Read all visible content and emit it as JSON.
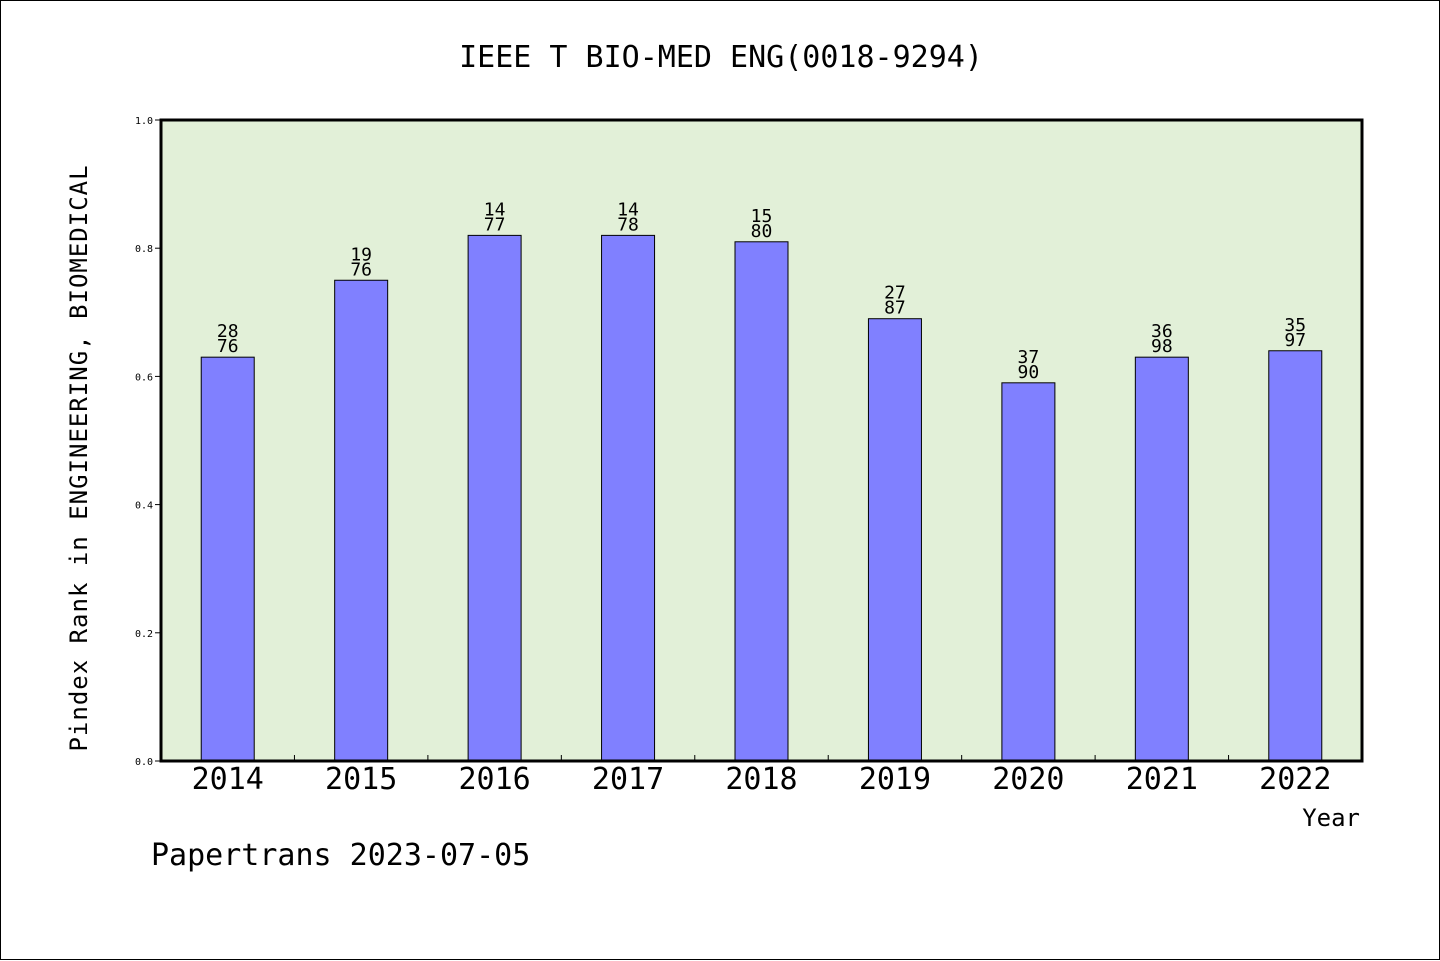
{
  "chart_data": {
    "type": "bar",
    "title": "IEEE T BIO-MED ENG(0018-9294)",
    "xlabel": "Year",
    "ylabel": "Pindex Rank in ENGINEERING, BIOMEDICAL",
    "categories": [
      "2014",
      "2015",
      "2016",
      "2017",
      "2018",
      "2019",
      "2020",
      "2021",
      "2022"
    ],
    "values": [
      0.63,
      0.75,
      0.82,
      0.82,
      0.81,
      0.69,
      0.59,
      0.63,
      0.64
    ],
    "rank_labels": [
      "28",
      "19",
      "14",
      "14",
      "15",
      "27",
      "37",
      "36",
      "35"
    ],
    "total_labels": [
      "76",
      "76",
      "77",
      "78",
      "80",
      "87",
      "90",
      "98",
      "97"
    ],
    "ylim": [
      0,
      1
    ],
    "yticks": [
      "0.0",
      "0.2",
      "0.4",
      "0.6",
      "0.8",
      "1.0"
    ],
    "grid": false,
    "colors": {
      "plot_background": "#e2f0d8",
      "bar_fill": "#8080ff",
      "bar_stroke": "#000000"
    }
  },
  "footer": "Papertrans 2023-07-05"
}
